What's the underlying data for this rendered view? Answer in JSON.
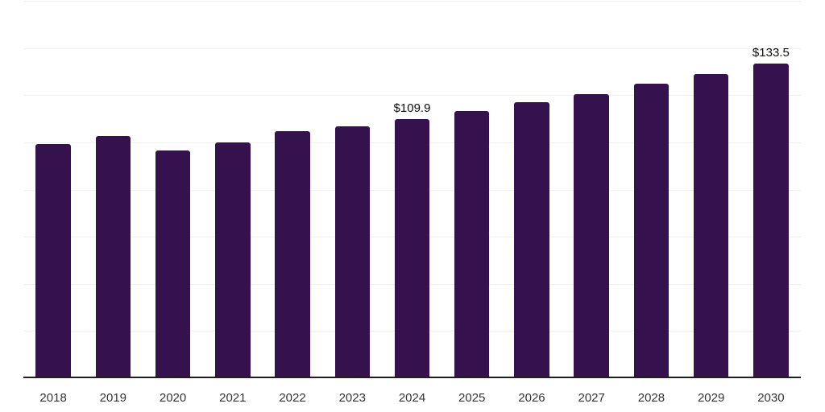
{
  "chart_data": {
    "type": "bar",
    "title": "",
    "xlabel": "",
    "ylabel": "",
    "categories": [
      "2018",
      "2019",
      "2020",
      "2021",
      "2022",
      "2023",
      "2024",
      "2025",
      "2026",
      "2027",
      "2028",
      "2029",
      "2030"
    ],
    "values": [
      99.2,
      102.7,
      96.6,
      100.0,
      104.6,
      106.7,
      109.9,
      113.1,
      117.1,
      120.5,
      124.8,
      128.8,
      133.5
    ],
    "value_prefix": "$",
    "annotations": [
      {
        "category": "2024",
        "label": "$109.9"
      },
      {
        "category": "2030",
        "label": "$133.5"
      }
    ],
    "ylim": [
      0,
      160
    ],
    "grid_step": 20,
    "grid": true,
    "legend": false,
    "colors": {
      "bar": "#35114E",
      "gridline": "#F1F1F2",
      "axis": "#1F1F1F",
      "tick_label": "#333333",
      "annotation": "#0D0D0D",
      "background": "#FFFFFF"
    }
  }
}
